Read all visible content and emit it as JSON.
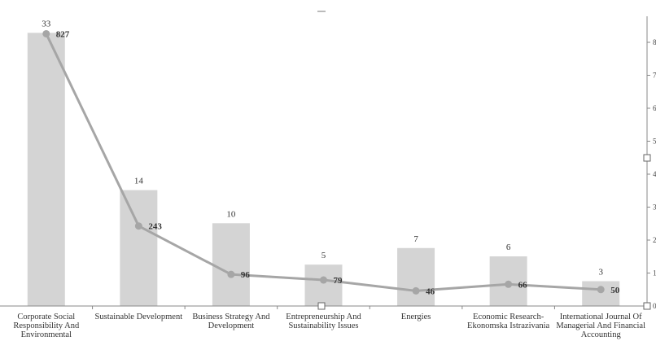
{
  "chart_data": {
    "type": "bar",
    "categories": [
      "Corporate Social Responsibility And Environmental",
      "Sustainable Development",
      "Business Strategy And Development",
      "Entrepreneurship And Sustainability Issues",
      "Energies",
      "Economic Research-Ekonomska Istrazivania",
      "International Journal Of Managerial And Financial Accounting"
    ],
    "series": [
      {
        "type": "bar",
        "values": [
          33,
          14,
          10,
          5,
          7,
          6,
          3
        ],
        "color": "#d4d4d4",
        "axis": "left"
      },
      {
        "type": "line",
        "values": [
          827,
          243,
          96,
          79,
          46,
          66,
          50
        ],
        "color": "#a6a6a6",
        "axis": "right"
      }
    ],
    "y_left_range": [
      0,
      35
    ],
    "y_right_range": [
      0,
      880
    ],
    "y_right_ticks": [
      "8",
      "7",
      "6",
      "5",
      "4",
      "3",
      "2",
      "1",
      "0"
    ],
    "grid": false,
    "legend": "none"
  }
}
